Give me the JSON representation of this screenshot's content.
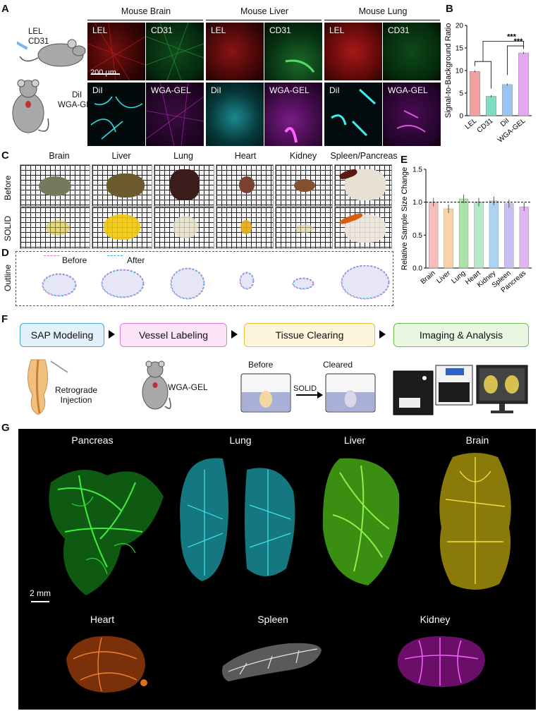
{
  "panels": {
    "A": "A",
    "B": "B",
    "C": "C",
    "D": "D",
    "E": "E",
    "F": "F",
    "G": "G"
  },
  "panelA": {
    "mouse1_label_1": "LEL",
    "mouse1_label_2": "CD31",
    "mouse2_label_1": "DiI",
    "mouse2_label_2": "WGA-GEL",
    "columns": [
      "Mouse Brain",
      "Mouse Liver",
      "Mouse Lung"
    ],
    "row1_labels": [
      "LEL",
      "CD31"
    ],
    "row2_labels": [
      "DiI",
      "WGA-GEL"
    ],
    "scalebar": "200 μm",
    "colors": {
      "LEL": "#c81e1e",
      "CD31": "#1e8a32",
      "DiI": "#1ad8dc",
      "WGA-GEL": "#c026c8"
    }
  },
  "chart_B": {
    "chart_data": {
      "type": "bar",
      "categories": [
        "LEL",
        "CD31",
        "DiI",
        "WGA-GEL"
      ],
      "values": [
        9.8,
        4.3,
        6.9,
        13.9
      ],
      "ylabel": "Signal-to-Background Ratio",
      "ylim": [
        0,
        20
      ],
      "yticks": [
        0,
        5,
        10,
        15,
        20
      ],
      "colors": [
        "#f2a0a0",
        "#7fdcc0",
        "#9cc4f0",
        "#e6a8f2"
      ],
      "significance": [
        "***",
        "***"
      ]
    }
  },
  "panelC": {
    "organs": [
      "Brain",
      "Liver",
      "Lung",
      "Heart",
      "Kidney",
      "Spleen/Pancreas"
    ],
    "rows": [
      "Before",
      "SOLID"
    ]
  },
  "panelD": {
    "row_label": "Outline",
    "legend_before": "Before",
    "legend_after": "After"
  },
  "chart_E": {
    "chart_data": {
      "type": "bar",
      "categories": [
        "Brain",
        "Liver",
        "Lung",
        "Heart",
        "Kidney",
        "Spleen",
        "Pancreas"
      ],
      "values": [
        1.0,
        0.9,
        1.05,
        1.0,
        1.02,
        0.98,
        0.93
      ],
      "ylabel": "Relative Sample Size Change",
      "ylim": [
        0,
        1.5
      ],
      "yticks": [
        0.0,
        0.5,
        1.0,
        1.5
      ],
      "reference_line": 1.0,
      "colors": [
        "#f4a6a6",
        "#f7c48a",
        "#8fd98f",
        "#9ee0b8",
        "#8fc6ee",
        "#b7a8ee",
        "#d79cf0"
      ]
    }
  },
  "panelF": {
    "steps": [
      "SAP Modeling",
      "Vessel Labeling",
      "Tissue Clearing",
      "Imaging & Analysis"
    ],
    "step_colors": [
      "#4aa6d8",
      "#e07ad8",
      "#e8c040",
      "#6fbf4f"
    ],
    "step_fills": [
      "#e2f1fa",
      "#fbe3f8",
      "#fdf6dd",
      "#e9f6e2"
    ],
    "injection": "Retrograde\nInjection",
    "mouse_label": "WGA-GEL",
    "before": "Before",
    "cleared": "Cleared",
    "solid": "SOLID"
  },
  "panelG": {
    "top": [
      "Pancreas",
      "Lung",
      "Liver",
      "Brain"
    ],
    "bottom": [
      "Heart",
      "Spleen",
      "Kidney"
    ],
    "scalebar": "2 mm",
    "colors": {
      "Pancreas": "#2fd62f",
      "Lung": "#1ec8d8",
      "Liver": "#55d82a",
      "Brain": "#e0cc20",
      "Heart": "#e0661a",
      "Spleen": "#d8d8d8",
      "Kidney": "#d42ad8"
    }
  }
}
